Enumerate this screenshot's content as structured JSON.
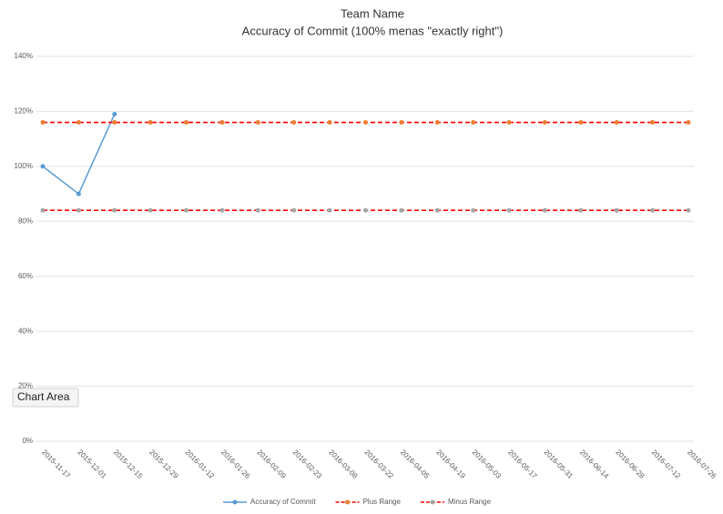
{
  "chart_data": {
    "type": "line",
    "title": "Team Name",
    "subtitle": "Accuracy of Commit (100% menas \"exactly right\")",
    "tooltip": "Chart Area",
    "categories": [
      "2015-11-17",
      "2015-12-01",
      "2015-12-15",
      "2015-12-29",
      "2016-01-12",
      "2016-01-26",
      "2016-02-09",
      "2016-02-23",
      "2016-03-08",
      "2016-03-22",
      "2016-04-05",
      "2016-04-19",
      "2016-05-03",
      "2016-05-17",
      "2016-05-31",
      "2016-06-14",
      "2016-06-28",
      "2016-07-12",
      "2016-07-26"
    ],
    "series": [
      {
        "name": "Accuracy of Commit",
        "color": "#5b9bd5",
        "line_color": "#5b9bd5",
        "dashed": false,
        "values": [
          100,
          90,
          119,
          null,
          null,
          null,
          null,
          null,
          null,
          null,
          null,
          null,
          null,
          null,
          null,
          null,
          null,
          null,
          null
        ]
      },
      {
        "name": "Plus Range",
        "color": "#ed7d31",
        "line_color": "#ff0000",
        "dashed": true,
        "values": [
          116,
          116,
          116,
          116,
          116,
          116,
          116,
          116,
          116,
          116,
          116,
          116,
          116,
          116,
          116,
          116,
          116,
          116,
          116
        ]
      },
      {
        "name": "Minus Range",
        "color": "#a5a5a5",
        "line_color": "#ff0000",
        "dashed": true,
        "values": [
          84,
          84,
          84,
          84,
          84,
          84,
          84,
          84,
          84,
          84,
          84,
          84,
          84,
          84,
          84,
          84,
          84,
          84,
          84
        ]
      }
    ],
    "ylim": [
      0,
      140
    ],
    "yticks": [
      {
        "value": 0,
        "label": "0%"
      },
      {
        "value": 20,
        "label": "20%"
      },
      {
        "value": 40,
        "label": "40%"
      },
      {
        "value": 60,
        "label": "60%"
      },
      {
        "value": 80,
        "label": "80%"
      },
      {
        "value": 100,
        "label": "100%"
      },
      {
        "value": 120,
        "label": "120%"
      },
      {
        "value": 140,
        "label": "140%"
      }
    ],
    "grid": true,
    "legend": "bottom"
  }
}
